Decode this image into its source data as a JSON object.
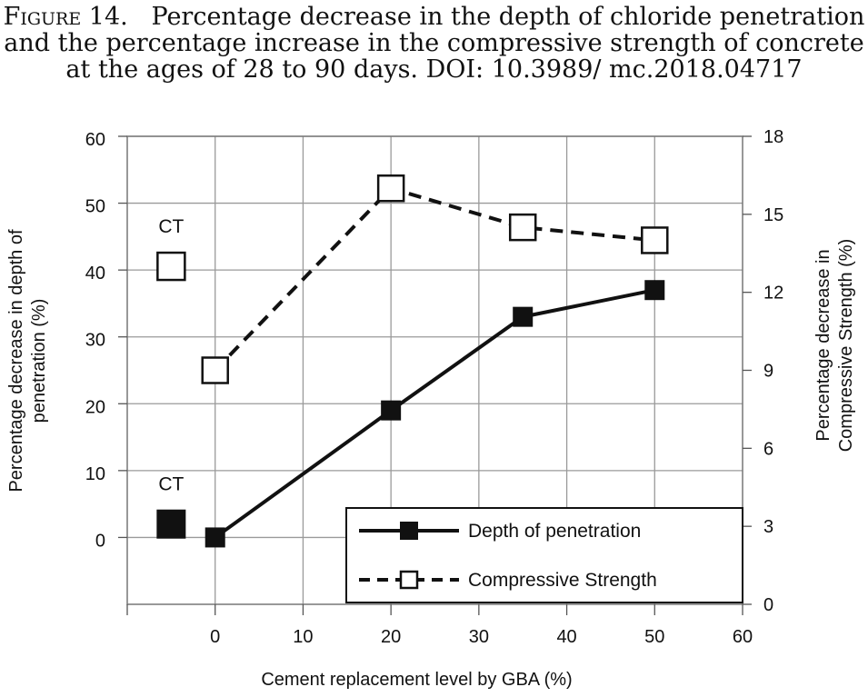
{
  "caption": {
    "lead": "Figure 14.",
    "text": "Percentage decrease in the depth of chloride penetration and the percentage increase in the compressive strength of concrete at the ages of 28 to 90 days. DOI: 10.3989/ mc.2018.04717"
  },
  "chart_data": {
    "type": "line",
    "xlabel": "Cement replacement  level by GBA (%)",
    "ylabel_left": "Percentage decrease in depth of penetration (%)",
    "ylabel_right": "Percentage decrease in Compressive Strength (%)",
    "x_ticks": [
      "0",
      "10",
      "20",
      "30",
      "40",
      "50",
      "60"
    ],
    "y_left_ticks": [
      "0",
      "10",
      "20",
      "30",
      "40",
      "50",
      "60"
    ],
    "y_right_ticks": [
      "0",
      "3",
      "6",
      "9",
      "12",
      "15",
      "18"
    ],
    "xlim": [
      -10,
      60
    ],
    "ylim_left": [
      -10,
      60
    ],
    "ylim_right": [
      0,
      18
    ],
    "grid": true,
    "legend_position": "bottom-right",
    "series": [
      {
        "name": "Depth of penetration",
        "axis": "left",
        "style": "solid",
        "marker": "filled-square",
        "x": [
          0,
          20,
          35,
          50
        ],
        "y": [
          0,
          19,
          33,
          37
        ]
      },
      {
        "name": "Compressive Strength",
        "axis": "right",
        "style": "dashed",
        "marker": "open-square",
        "x": [
          0,
          20,
          35,
          50
        ],
        "y": [
          9,
          16,
          14.5,
          14
        ]
      }
    ],
    "control_points": [
      {
        "label": "CT",
        "axis": "left",
        "marker": "filled-square",
        "y": 2
      },
      {
        "label": "CT",
        "axis": "right",
        "marker": "open-square",
        "y": 13
      }
    ]
  }
}
